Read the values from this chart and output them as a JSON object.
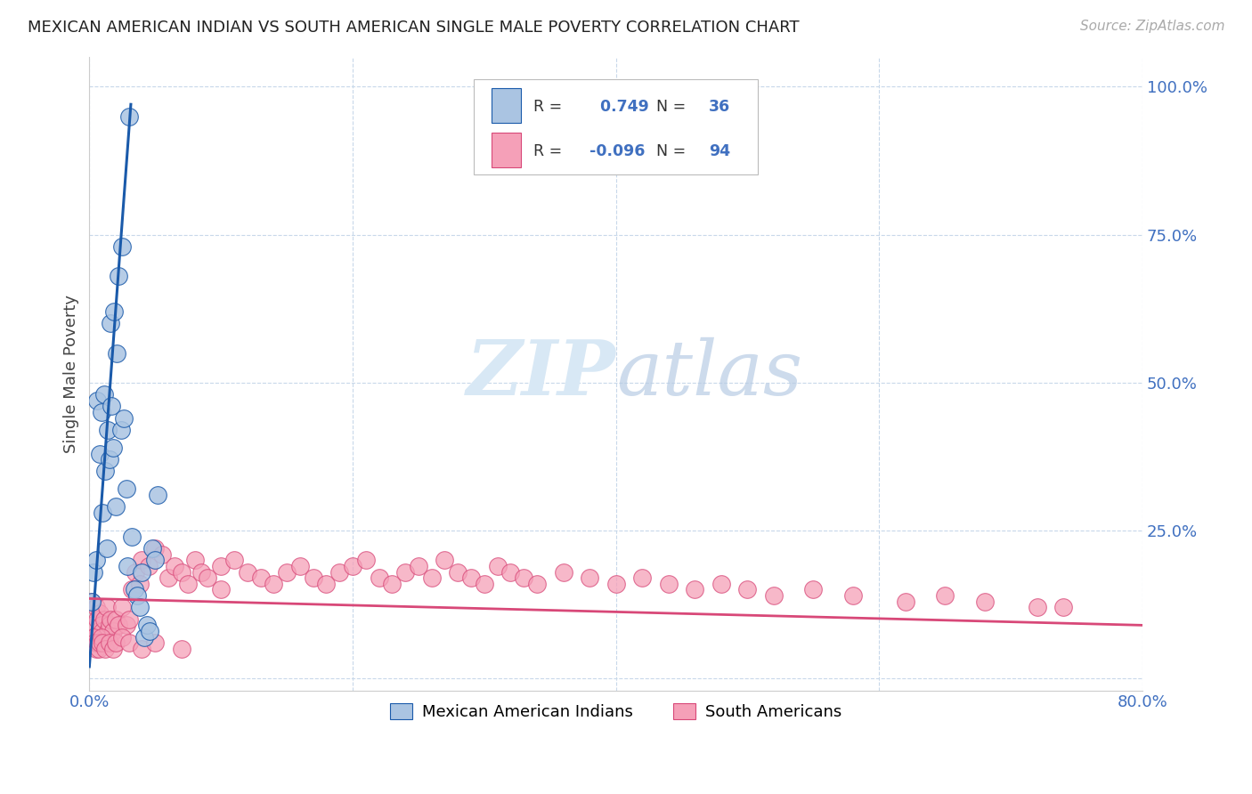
{
  "title": "MEXICAN AMERICAN INDIAN VS SOUTH AMERICAN SINGLE MALE POVERTY CORRELATION CHART",
  "source": "Source: ZipAtlas.com",
  "ylabel": "Single Male Poverty",
  "legend1_label": "Mexican American Indians",
  "legend2_label": "South Americans",
  "r1": 0.749,
  "n1": 36,
  "r2": -0.096,
  "n2": 94,
  "blue_color": "#aac4e2",
  "blue_line_color": "#1a5aaa",
  "pink_color": "#f5a0b8",
  "pink_line_color": "#d84878",
  "watermark_color": "#d8e8f5",
  "blue_scatter_x": [
    0.002,
    0.003,
    0.005,
    0.006,
    0.008,
    0.009,
    0.01,
    0.011,
    0.012,
    0.013,
    0.014,
    0.015,
    0.016,
    0.017,
    0.018,
    0.019,
    0.02,
    0.021,
    0.022,
    0.024,
    0.025,
    0.026,
    0.028,
    0.029,
    0.03,
    0.032,
    0.034,
    0.036,
    0.038,
    0.04,
    0.042,
    0.044,
    0.046,
    0.048,
    0.05,
    0.052
  ],
  "blue_scatter_y": [
    0.13,
    0.18,
    0.2,
    0.47,
    0.38,
    0.45,
    0.28,
    0.48,
    0.35,
    0.22,
    0.42,
    0.37,
    0.6,
    0.46,
    0.39,
    0.62,
    0.29,
    0.55,
    0.68,
    0.42,
    0.73,
    0.44,
    0.32,
    0.19,
    0.95,
    0.24,
    0.15,
    0.14,
    0.12,
    0.18,
    0.07,
    0.09,
    0.08,
    0.22,
    0.2,
    0.31
  ],
  "pink_scatter_x": [
    0.002,
    0.003,
    0.004,
    0.005,
    0.006,
    0.007,
    0.008,
    0.009,
    0.01,
    0.011,
    0.012,
    0.013,
    0.014,
    0.015,
    0.016,
    0.018,
    0.02,
    0.022,
    0.025,
    0.028,
    0.03,
    0.032,
    0.035,
    0.038,
    0.04,
    0.045,
    0.05,
    0.055,
    0.06,
    0.065,
    0.07,
    0.075,
    0.08,
    0.085,
    0.09,
    0.1,
    0.11,
    0.12,
    0.13,
    0.14,
    0.15,
    0.16,
    0.17,
    0.18,
    0.19,
    0.2,
    0.21,
    0.22,
    0.23,
    0.24,
    0.25,
    0.26,
    0.27,
    0.28,
    0.29,
    0.3,
    0.31,
    0.32,
    0.33,
    0.34,
    0.36,
    0.38,
    0.4,
    0.42,
    0.44,
    0.46,
    0.48,
    0.5,
    0.52,
    0.55,
    0.58,
    0.62,
    0.65,
    0.68,
    0.72,
    0.74,
    0.003,
    0.004,
    0.005,
    0.006,
    0.007,
    0.008,
    0.009,
    0.01,
    0.012,
    0.015,
    0.018,
    0.02,
    0.025,
    0.03,
    0.04,
    0.05,
    0.07,
    0.1
  ],
  "pink_scatter_y": [
    0.13,
    0.09,
    0.07,
    0.12,
    0.1,
    0.08,
    0.11,
    0.09,
    0.08,
    0.1,
    0.07,
    0.12,
    0.08,
    0.09,
    0.1,
    0.08,
    0.1,
    0.09,
    0.12,
    0.09,
    0.1,
    0.15,
    0.18,
    0.16,
    0.2,
    0.19,
    0.22,
    0.21,
    0.17,
    0.19,
    0.18,
    0.16,
    0.2,
    0.18,
    0.17,
    0.19,
    0.2,
    0.18,
    0.17,
    0.16,
    0.18,
    0.19,
    0.17,
    0.16,
    0.18,
    0.19,
    0.2,
    0.17,
    0.16,
    0.18,
    0.19,
    0.17,
    0.2,
    0.18,
    0.17,
    0.16,
    0.19,
    0.18,
    0.17,
    0.16,
    0.18,
    0.17,
    0.16,
    0.17,
    0.16,
    0.15,
    0.16,
    0.15,
    0.14,
    0.15,
    0.14,
    0.13,
    0.14,
    0.13,
    0.12,
    0.12,
    0.07,
    0.06,
    0.05,
    0.06,
    0.05,
    0.06,
    0.07,
    0.06,
    0.05,
    0.06,
    0.05,
    0.06,
    0.07,
    0.06,
    0.05,
    0.06,
    0.05,
    0.15
  ],
  "xlim": [
    0.0,
    0.8
  ],
  "ylim": [
    -0.02,
    1.05
  ],
  "ytick_vals": [
    0.0,
    0.25,
    0.5,
    0.75,
    1.0
  ],
  "ytick_labels": [
    "",
    "25.0%",
    "50.0%",
    "75.0%",
    "100.0%"
  ],
  "xtick_vals": [
    0.0,
    0.2,
    0.4,
    0.6,
    0.8
  ],
  "xtick_labels": [
    "0.0%",
    "",
    "",
    "",
    "80.0%"
  ],
  "grid_color": "#c8d8ea",
  "spine_color": "#cccccc",
  "tick_color": "#4070c0",
  "title_fontsize": 13,
  "label_fontsize": 13,
  "tick_fontsize": 13
}
